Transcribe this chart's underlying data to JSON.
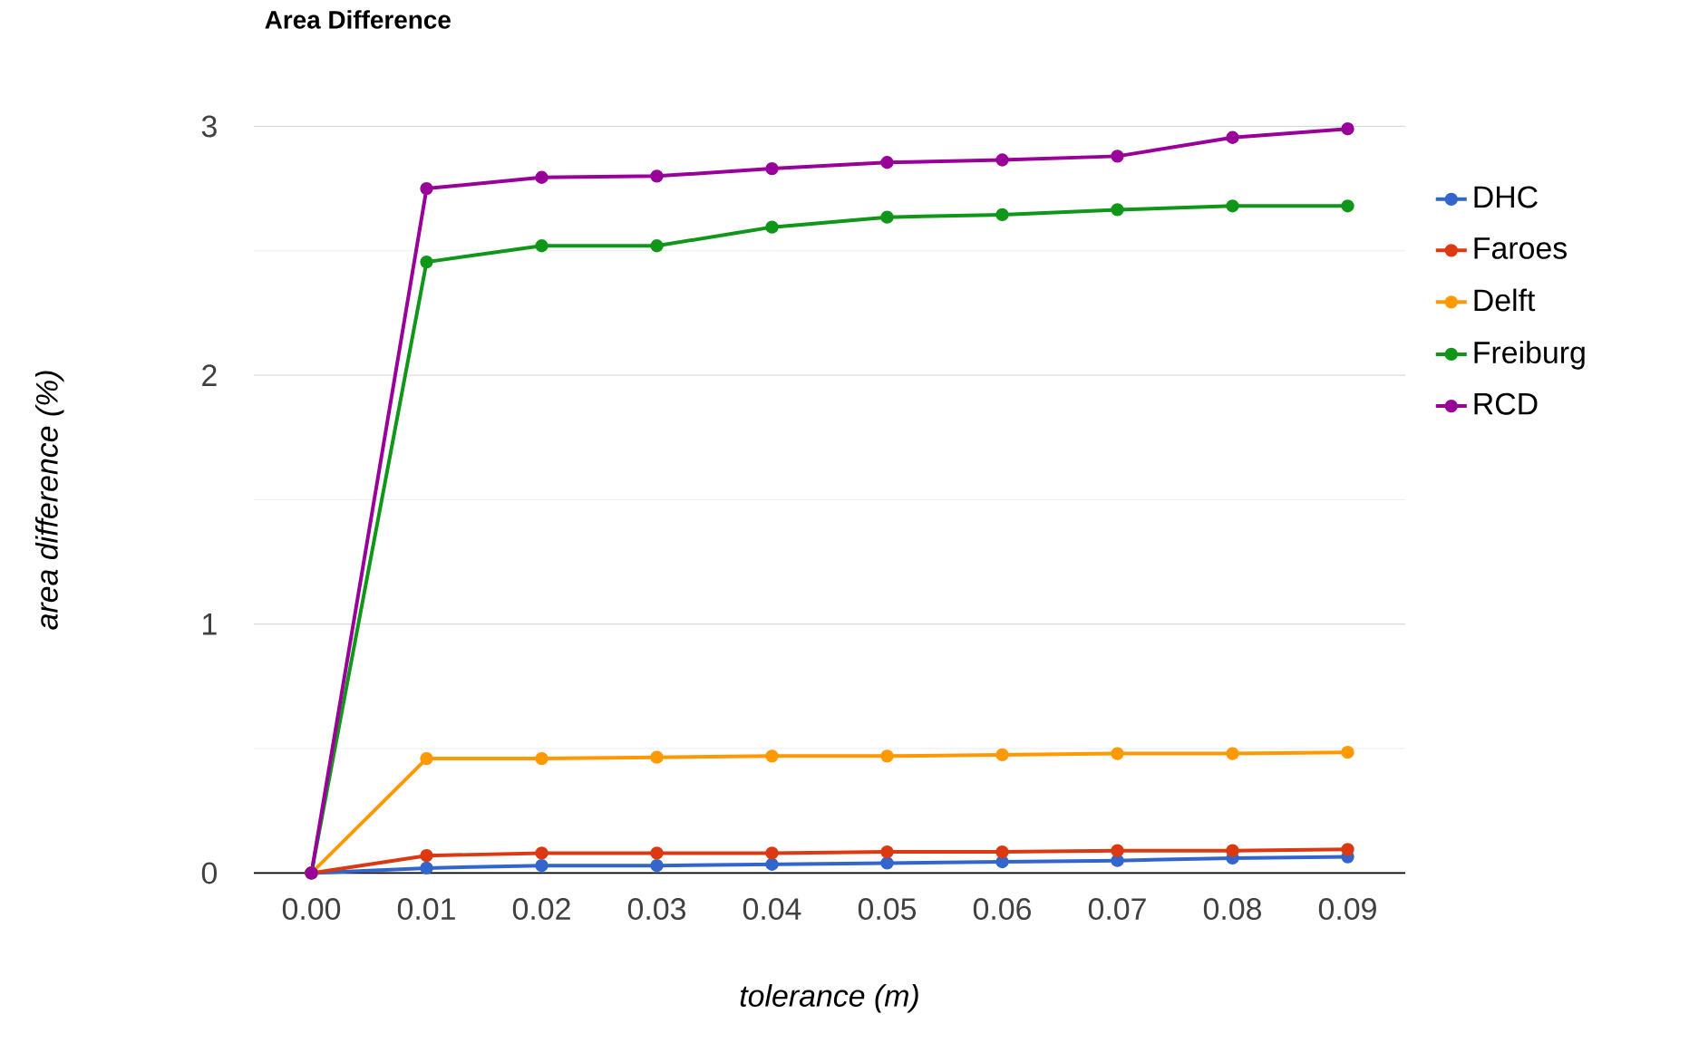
{
  "chart_data": {
    "type": "line",
    "title": "Area Difference",
    "xlabel": "tolerance (m)",
    "ylabel": "area difference (%)",
    "categories": [
      "0.00",
      "0.01",
      "0.02",
      "0.03",
      "0.04",
      "0.05",
      "0.06",
      "0.07",
      "0.08",
      "0.09"
    ],
    "series": [
      {
        "name": "DHC",
        "color": "#3366cc",
        "values": [
          0,
          0.02,
          0.03,
          0.03,
          0.035,
          0.04,
          0.045,
          0.05,
          0.06,
          0.065
        ]
      },
      {
        "name": "Faroes",
        "color": "#dc3912",
        "values": [
          0,
          0.07,
          0.08,
          0.08,
          0.08,
          0.085,
          0.085,
          0.09,
          0.09,
          0.095
        ]
      },
      {
        "name": "Delft",
        "color": "#ff9900",
        "values": [
          0,
          0.46,
          0.46,
          0.465,
          0.47,
          0.47,
          0.475,
          0.48,
          0.48,
          0.485
        ]
      },
      {
        "name": "Freiburg",
        "color": "#109618",
        "values": [
          0,
          2.455,
          2.52,
          2.52,
          2.595,
          2.635,
          2.645,
          2.665,
          2.68,
          2.68
        ]
      },
      {
        "name": "RCD",
        "color": "#990099",
        "values": [
          0,
          2.75,
          2.795,
          2.8,
          2.83,
          2.855,
          2.865,
          2.88,
          2.955,
          2.99
        ]
      }
    ],
    "ylim": [
      0,
      3
    ],
    "yticks": [
      0,
      {
        "value": 0.5,
        "label": null
      },
      1,
      {
        "value": 1.5,
        "label": null
      },
      2,
      {
        "value": 2.5,
        "label": null
      },
      3
    ],
    "grid": "y",
    "legend": "right",
    "marker": "circle",
    "line_style": "solid"
  }
}
